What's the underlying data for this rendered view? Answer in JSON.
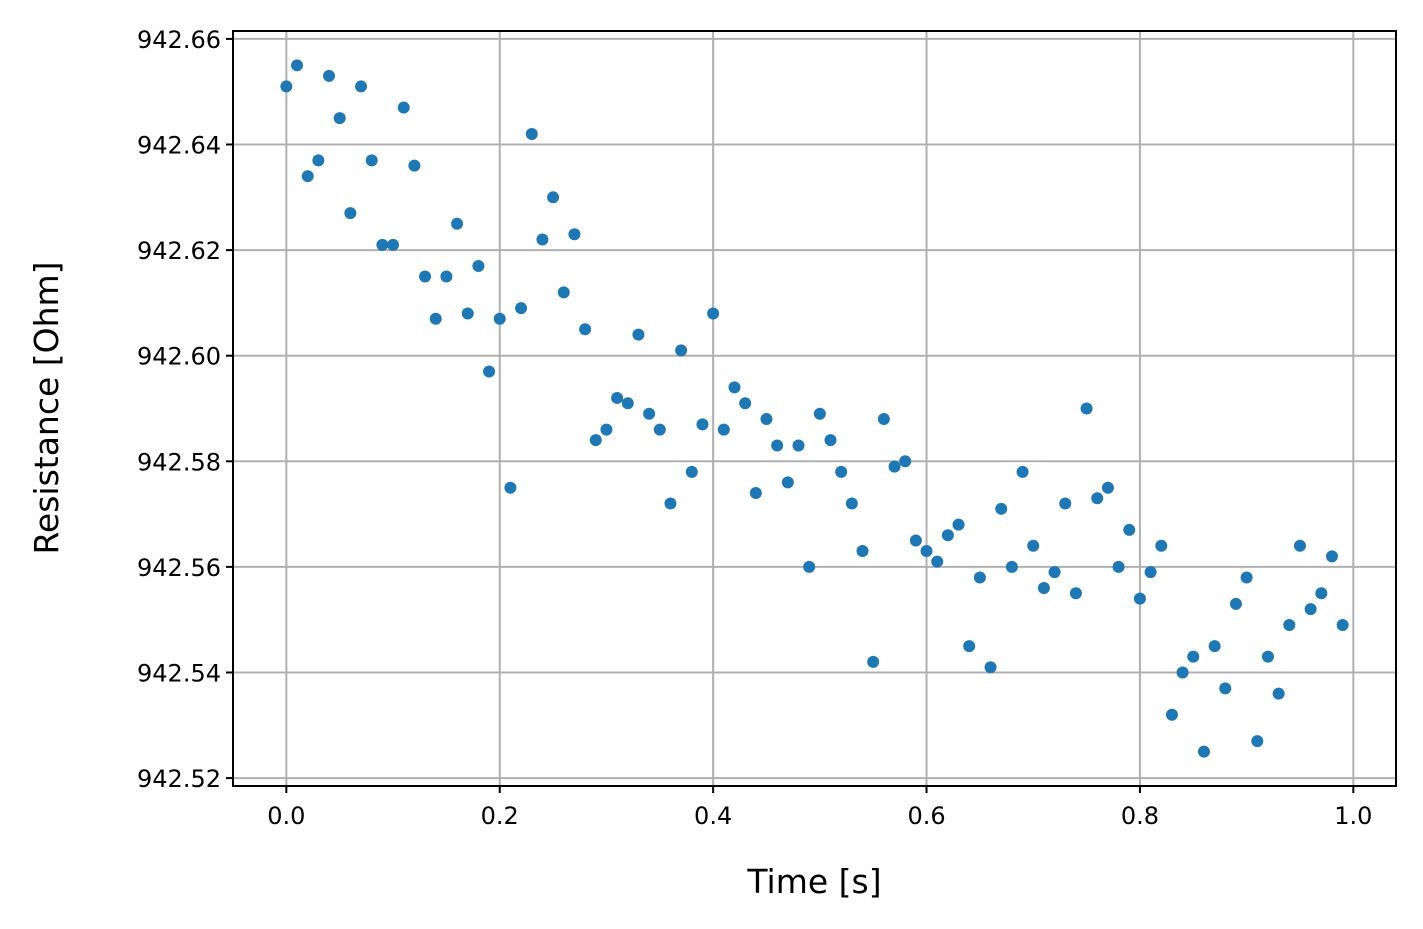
{
  "chart_data": {
    "type": "scatter",
    "xlabel": "Time [s]",
    "ylabel": "Resistance [Ohm]",
    "xlim": [
      -0.05,
      1.04
    ],
    "ylim": [
      942.5185,
      942.6615
    ],
    "xticks": [
      0.0,
      0.2,
      0.4,
      0.6,
      0.8,
      1.0
    ],
    "xtick_labels": [
      "0.0",
      "0.2",
      "0.4",
      "0.6",
      "0.8",
      "1.0"
    ],
    "yticks": [
      942.52,
      942.54,
      942.56,
      942.58,
      942.6,
      942.62,
      942.64,
      942.66
    ],
    "ytick_labels": [
      "942.52",
      "942.54",
      "942.56",
      "942.58",
      "942.60",
      "942.62",
      "942.64",
      "942.66"
    ],
    "grid": true,
    "marker_color": "#1f77b4",
    "series": [
      {
        "x": [
          0.0,
          0.01,
          0.02,
          0.03,
          0.04,
          0.05,
          0.06,
          0.07,
          0.08,
          0.09,
          0.1,
          0.11,
          0.12,
          0.13,
          0.14,
          0.15,
          0.16,
          0.17,
          0.18,
          0.19,
          0.2,
          0.21,
          0.22,
          0.23,
          0.24,
          0.25,
          0.26,
          0.27,
          0.28,
          0.29,
          0.3,
          0.31,
          0.32,
          0.33,
          0.34,
          0.35,
          0.36,
          0.37,
          0.38,
          0.39,
          0.4,
          0.41,
          0.42,
          0.43,
          0.44,
          0.45,
          0.46,
          0.47,
          0.48,
          0.49,
          0.5,
          0.51,
          0.52,
          0.53,
          0.54,
          0.55,
          0.56,
          0.57,
          0.58,
          0.59,
          0.6,
          0.61,
          0.62,
          0.63,
          0.64,
          0.65,
          0.66,
          0.67,
          0.68,
          0.69,
          0.7,
          0.71,
          0.72,
          0.73,
          0.74,
          0.75,
          0.76,
          0.77,
          0.78,
          0.79,
          0.8,
          0.81,
          0.82,
          0.83,
          0.84,
          0.85,
          0.86,
          0.87,
          0.88,
          0.89,
          0.9,
          0.91,
          0.92,
          0.93,
          0.94,
          0.95,
          0.96,
          0.97,
          0.98,
          0.99
        ],
        "y": [
          942.651,
          942.655,
          942.634,
          942.637,
          942.653,
          942.645,
          942.627,
          942.651,
          942.637,
          942.621,
          942.621,
          942.647,
          942.636,
          942.615,
          942.607,
          942.615,
          942.625,
          942.608,
          942.617,
          942.597,
          942.607,
          942.575,
          942.609,
          942.642,
          942.622,
          942.63,
          942.612,
          942.623,
          942.605,
          942.584,
          942.586,
          942.592,
          942.591,
          942.604,
          942.589,
          942.586,
          942.572,
          942.601,
          942.578,
          942.587,
          942.608,
          942.586,
          942.594,
          942.591,
          942.574,
          942.588,
          942.583,
          942.576,
          942.583,
          942.56,
          942.589,
          942.584,
          942.578,
          942.572,
          942.563,
          942.542,
          942.588,
          942.579,
          942.58,
          942.565,
          942.563,
          942.561,
          942.566,
          942.568,
          942.545,
          942.558,
          942.541,
          942.571,
          942.56,
          942.578,
          942.564,
          942.556,
          942.559,
          942.572,
          942.555,
          942.59,
          942.573,
          942.575,
          942.56,
          942.567,
          942.554,
          942.559,
          942.564,
          942.532,
          942.54,
          942.543,
          942.525,
          942.545,
          942.537,
          942.553,
          942.558,
          942.527,
          942.543,
          942.536,
          942.549,
          942.564,
          942.552,
          942.555,
          942.562,
          942.549
        ]
      }
    ]
  }
}
